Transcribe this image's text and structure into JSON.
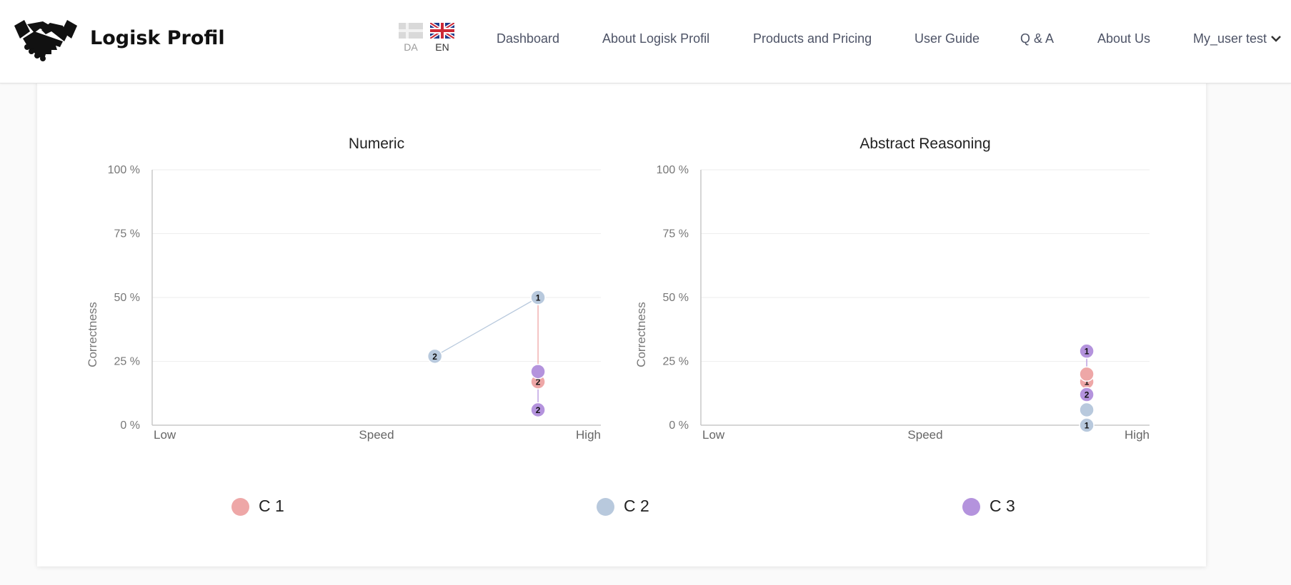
{
  "header": {
    "brand": "Logisk Profil",
    "languages": [
      {
        "code": "DA",
        "active": false
      },
      {
        "code": "EN",
        "active": true
      }
    ],
    "nav": [
      {
        "label": "Dashboard"
      },
      {
        "label": "About Logisk Profil"
      },
      {
        "label": "Products and Pricing"
      },
      {
        "label": "User Guide"
      },
      {
        "label": "Q & A"
      },
      {
        "label": "About Us"
      }
    ],
    "user_menu": "My_user test"
  },
  "colors": {
    "C 1": "#eea7a7",
    "C 2": "#b8c9dd",
    "C 3": "#b493dd",
    "accent_text": "#4d5366"
  },
  "legend": [
    {
      "name": "C 1",
      "color": "#eea7a7"
    },
    {
      "name": "C 2",
      "color": "#b8c9dd"
    },
    {
      "name": "C 3",
      "color": "#b493dd"
    }
  ],
  "chart_data": [
    {
      "type": "scatter",
      "title": "Numeric",
      "xlabel": "Speed",
      "ylabel": "Correctness",
      "x_ticks": [
        "Low",
        "High"
      ],
      "y_ticks": [
        "0 %",
        "25 %",
        "50 %",
        "75 %",
        "100 %"
      ],
      "xlim": [
        0,
        100
      ],
      "ylim": [
        0,
        100
      ],
      "grid": true,
      "series": [
        {
          "name": "C 1",
          "color": "#eea7a7",
          "points": [
            {
              "x": 86,
              "y": 50,
              "label": "1"
            },
            {
              "x": 86,
              "y": 17,
              "label": "2"
            }
          ]
        },
        {
          "name": "C 2",
          "color": "#b8c9dd",
          "points": [
            {
              "x": 86,
              "y": 50,
              "label": "1"
            },
            {
              "x": 63,
              "y": 27,
              "label": "2"
            }
          ]
        },
        {
          "name": "C 3",
          "color": "#b493dd",
          "points": [
            {
              "x": 86,
              "y": 21,
              "label": ""
            },
            {
              "x": 86,
              "y": 6,
              "label": "2"
            }
          ]
        }
      ]
    },
    {
      "type": "scatter",
      "title": "Abstract Reasoning",
      "xlabel": "Speed",
      "ylabel": "Correctness",
      "x_ticks": [
        "Low",
        "High"
      ],
      "y_ticks": [
        "0 %",
        "25 %",
        "50 %",
        "75 %",
        "100 %"
      ],
      "xlim": [
        0,
        100
      ],
      "ylim": [
        0,
        100
      ],
      "grid": true,
      "series": [
        {
          "name": "C 1",
          "color": "#eea7a7",
          "points": [
            {
              "x": 86,
              "y": 17,
              "label": "1"
            },
            {
              "x": 86,
              "y": 20,
              "label": ""
            }
          ]
        },
        {
          "name": "C 2",
          "color": "#b8c9dd",
          "points": [
            {
              "x": 86,
              "y": 0,
              "label": "1"
            },
            {
              "x": 86,
              "y": 6,
              "label": ""
            }
          ]
        },
        {
          "name": "C 3",
          "color": "#b493dd",
          "points": [
            {
              "x": 86,
              "y": 29,
              "label": "1"
            },
            {
              "x": 86,
              "y": 12,
              "label": "2"
            }
          ]
        }
      ]
    }
  ]
}
